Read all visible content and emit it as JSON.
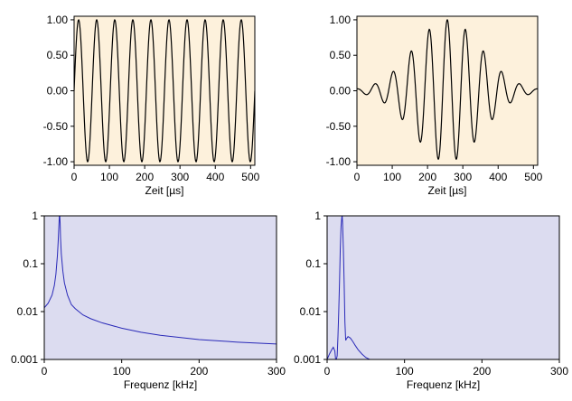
{
  "colors": {
    "time_bg": "#fdf1dc",
    "freq_bg": "#dcdcf0",
    "time_line": "#000000",
    "freq_line": "#2a2ab8",
    "frame": "#000000"
  },
  "chart_data": [
    {
      "id": "top-left",
      "type": "line",
      "xlabel": "Zeit [µs]",
      "ylabel": "",
      "xlim": [
        0,
        512
      ],
      "ylim": [
        -1.05,
        1.05
      ],
      "xticks": [
        0,
        100,
        200,
        300,
        400,
        500
      ],
      "yticks": [
        1.0,
        0.5,
        0.0,
        -0.5,
        -1.0
      ],
      "ytick_labels": [
        "1.00",
        "0.50",
        "0.00",
        "-0.50",
        "-1.00"
      ],
      "signal": {
        "kind": "sine",
        "period_us": 51.2,
        "amplitude": 1.0,
        "samples": 512
      },
      "grid": false
    },
    {
      "id": "top-right",
      "type": "line",
      "xlabel": "Zeit [µs]",
      "ylabel": "",
      "xlim": [
        0,
        512
      ],
      "ylim": [
        -1.05,
        1.05
      ],
      "xticks": [
        0,
        100,
        200,
        300,
        400,
        500
      ],
      "yticks": [
        1.0,
        0.5,
        0.0,
        -0.5,
        -1.0
      ],
      "ytick_labels": [
        "1.00",
        "0.50",
        "0.00",
        "-0.50",
        "-1.00"
      ],
      "signal": {
        "kind": "gaussian-burst",
        "period_us": 51.2,
        "center_us": 256,
        "sigma_us": 95,
        "amplitude": 1.0,
        "samples": 512
      },
      "grid": false
    },
    {
      "id": "bottom-left",
      "type": "line",
      "xlabel": "Frequenz [kHz]",
      "ylabel": "",
      "xlim": [
        0,
        300
      ],
      "ylim": [
        0.001,
        1
      ],
      "yscale": "log",
      "xticks": [
        0,
        100,
        200,
        300
      ],
      "yticks": [
        1,
        0.1,
        0.01,
        0.001
      ],
      "ytick_labels": [
        "1",
        "0.1",
        "0.01",
        "0.001"
      ],
      "series": [
        {
          "x": [
            0,
            5,
            10,
            13,
            15,
            17,
            18,
            19,
            19.5,
            20,
            20.5,
            21,
            22,
            24,
            26,
            30,
            35,
            40,
            50,
            60,
            75,
            100,
            125,
            150,
            200,
            250,
            300
          ],
          "y": [
            0.012,
            0.015,
            0.022,
            0.035,
            0.06,
            0.15,
            0.3,
            0.7,
            1.0,
            1.0,
            0.7,
            0.35,
            0.16,
            0.07,
            0.04,
            0.022,
            0.014,
            0.0115,
            0.0085,
            0.0071,
            0.0058,
            0.0045,
            0.0037,
            0.0032,
            0.0026,
            0.0023,
            0.0021
          ]
        }
      ],
      "grid": false
    },
    {
      "id": "bottom-right",
      "type": "line",
      "xlabel": "Frequenz [kHz]",
      "ylabel": "",
      "xlim": [
        0,
        300
      ],
      "ylim": [
        0.001,
        1
      ],
      "yscale": "log",
      "xticks": [
        0,
        100,
        200,
        300
      ],
      "yticks": [
        1,
        0.1,
        0.01,
        0.001
      ],
      "ytick_labels": [
        "1",
        "0.1",
        "0.01",
        "0.001"
      ],
      "series": [
        {
          "x": [
            0,
            3,
            6,
            8,
            10,
            11,
            12,
            13,
            14,
            15,
            16,
            17,
            18,
            19,
            19.5,
            20,
            21,
            22,
            23,
            24,
            25,
            27,
            30,
            33,
            36,
            40,
            45,
            50,
            55,
            60
          ],
          "y": [
            0.001,
            0.0013,
            0.0016,
            0.0018,
            0.0015,
            0.001,
            0.001,
            0.0012,
            0.003,
            0.01,
            0.04,
            0.2,
            0.6,
            0.95,
            1.0,
            0.7,
            0.2,
            0.04,
            0.006,
            0.0025,
            0.0027,
            0.003,
            0.0028,
            0.0024,
            0.002,
            0.0016,
            0.0013,
            0.0011,
            0.001,
            0.001
          ]
        }
      ],
      "grid": false
    }
  ]
}
